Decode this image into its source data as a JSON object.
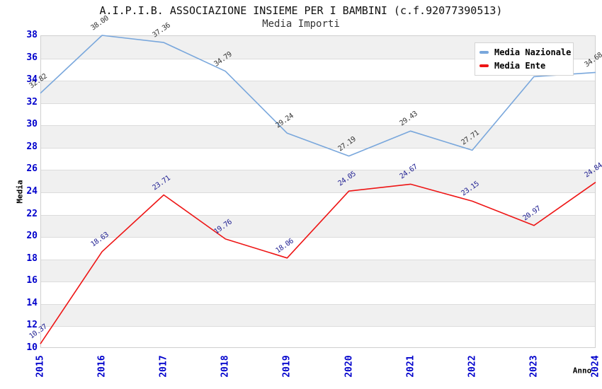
{
  "chart_data": {
    "type": "line",
    "title": "A.I.P.I.B. ASSOCIAZIONE INSIEME PER I BAMBINI (c.f.92077390513)",
    "subtitle": "Media Importi",
    "xlabel": "Anno",
    "ylabel": "Media",
    "categories": [
      "2015",
      "2016",
      "2017",
      "2018",
      "2019",
      "2020",
      "2021",
      "2022",
      "2023",
      "2024"
    ],
    "series": [
      {
        "name": "Media Nazionale",
        "color": "#79a7dc",
        "label_color": "#333333",
        "values": [
          32.82,
          38.0,
          37.36,
          34.79,
          29.24,
          27.19,
          29.43,
          27.71,
          34.3,
          34.68
        ]
      },
      {
        "name": "Media Ente",
        "color": "#ee1515",
        "label_color": "#1c1c90",
        "values": [
          10.37,
          18.63,
          23.71,
          19.76,
          18.06,
          24.05,
          24.67,
          23.15,
          20.97,
          24.84
        ]
      }
    ],
    "ylim": [
      10,
      38
    ],
    "yticks": [
      10,
      12,
      14,
      16,
      18,
      20,
      22,
      24,
      26,
      28,
      30,
      32,
      34,
      36,
      38
    ],
    "grid": "horizontal-bands-alternating",
    "band_color": "#f0f0f0",
    "tick_label_color": "#0000cc",
    "legend_position": "top-right"
  }
}
